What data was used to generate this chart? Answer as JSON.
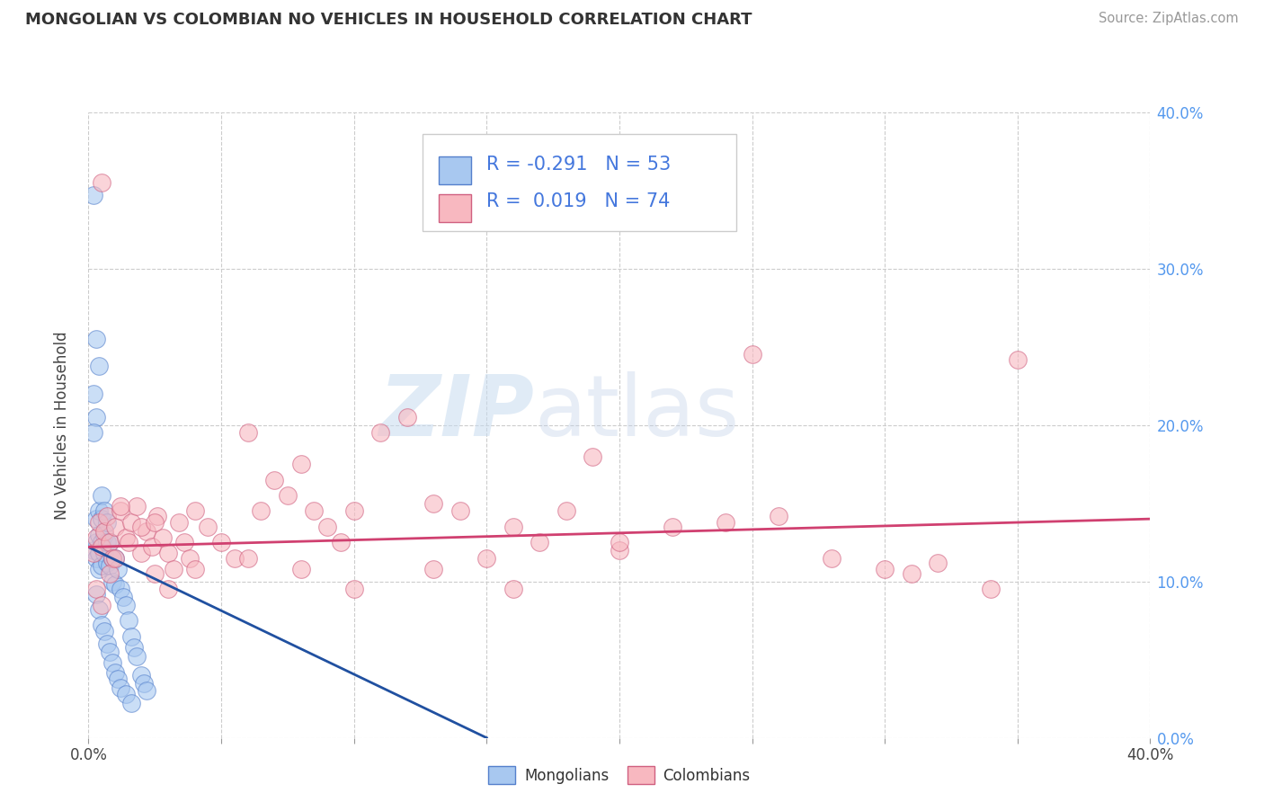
{
  "title": "MONGOLIAN VS COLOMBIAN NO VEHICLES IN HOUSEHOLD CORRELATION CHART",
  "source": "Source: ZipAtlas.com",
  "ylabel": "No Vehicles in Household",
  "watermark_zip": "ZIP",
  "watermark_atlas": "atlas",
  "legend_mongolian": "Mongolians",
  "legend_colombian": "Colombians",
  "mongolian_R": -0.291,
  "mongolian_N": 53,
  "colombian_R": 0.019,
  "colombian_N": 74,
  "xlim": [
    0.0,
    0.4
  ],
  "ylim": [
    0.0,
    0.4
  ],
  "color_mongolian_fill": "#A8C8F0",
  "color_mongolian_edge": "#5580CC",
  "color_colombian_fill": "#F8B8C0",
  "color_colombian_edge": "#D06080",
  "color_line_mongolian": "#2050A0",
  "color_line_colombian": "#D04070",
  "background_color": "#FFFFFF",
  "grid_color": "#CCCCCC",
  "right_tick_color": "#5599EE",
  "mongolian_x": [
    0.002,
    0.002,
    0.003,
    0.003,
    0.003,
    0.004,
    0.004,
    0.004,
    0.004,
    0.005,
    0.005,
    0.005,
    0.005,
    0.006,
    0.006,
    0.006,
    0.007,
    0.007,
    0.007,
    0.008,
    0.008,
    0.009,
    0.009,
    0.01,
    0.01,
    0.011,
    0.012,
    0.013,
    0.014,
    0.015,
    0.016,
    0.017,
    0.018,
    0.02,
    0.021,
    0.022,
    0.003,
    0.004,
    0.005,
    0.006,
    0.007,
    0.008,
    0.009,
    0.01,
    0.011,
    0.012,
    0.014,
    0.016,
    0.003,
    0.004,
    0.002,
    0.003,
    0.002
  ],
  "mongolian_y": [
    0.347,
    0.12,
    0.14,
    0.125,
    0.115,
    0.145,
    0.13,
    0.118,
    0.108,
    0.155,
    0.14,
    0.125,
    0.11,
    0.145,
    0.13,
    0.118,
    0.138,
    0.125,
    0.112,
    0.125,
    0.11,
    0.115,
    0.1,
    0.115,
    0.098,
    0.108,
    0.095,
    0.09,
    0.085,
    0.075,
    0.065,
    0.058,
    0.052,
    0.04,
    0.035,
    0.03,
    0.092,
    0.082,
    0.072,
    0.068,
    0.06,
    0.055,
    0.048,
    0.042,
    0.038,
    0.032,
    0.028,
    0.022,
    0.255,
    0.238,
    0.22,
    0.205,
    0.195
  ],
  "colombian_x": [
    0.002,
    0.003,
    0.004,
    0.005,
    0.006,
    0.007,
    0.008,
    0.009,
    0.01,
    0.012,
    0.014,
    0.016,
    0.018,
    0.02,
    0.022,
    0.024,
    0.026,
    0.028,
    0.03,
    0.032,
    0.034,
    0.036,
    0.038,
    0.04,
    0.045,
    0.05,
    0.055,
    0.06,
    0.065,
    0.07,
    0.075,
    0.08,
    0.085,
    0.09,
    0.095,
    0.1,
    0.11,
    0.12,
    0.13,
    0.14,
    0.15,
    0.16,
    0.17,
    0.18,
    0.19,
    0.2,
    0.22,
    0.24,
    0.26,
    0.28,
    0.3,
    0.32,
    0.34,
    0.003,
    0.005,
    0.008,
    0.01,
    0.015,
    0.02,
    0.025,
    0.03,
    0.04,
    0.06,
    0.08,
    0.1,
    0.13,
    0.16,
    0.2,
    0.25,
    0.31,
    0.005,
    0.012,
    0.025,
    0.35
  ],
  "colombian_y": [
    0.118,
    0.128,
    0.138,
    0.122,
    0.132,
    0.142,
    0.125,
    0.115,
    0.135,
    0.145,
    0.128,
    0.138,
    0.148,
    0.118,
    0.132,
    0.122,
    0.142,
    0.128,
    0.118,
    0.108,
    0.138,
    0.125,
    0.115,
    0.145,
    0.135,
    0.125,
    0.115,
    0.195,
    0.145,
    0.165,
    0.155,
    0.175,
    0.145,
    0.135,
    0.125,
    0.145,
    0.195,
    0.205,
    0.15,
    0.145,
    0.115,
    0.135,
    0.125,
    0.145,
    0.18,
    0.12,
    0.135,
    0.138,
    0.142,
    0.115,
    0.108,
    0.112,
    0.095,
    0.095,
    0.085,
    0.105,
    0.115,
    0.125,
    0.135,
    0.105,
    0.095,
    0.108,
    0.115,
    0.108,
    0.095,
    0.108,
    0.095,
    0.125,
    0.245,
    0.105,
    0.355,
    0.148,
    0.138,
    0.242
  ]
}
